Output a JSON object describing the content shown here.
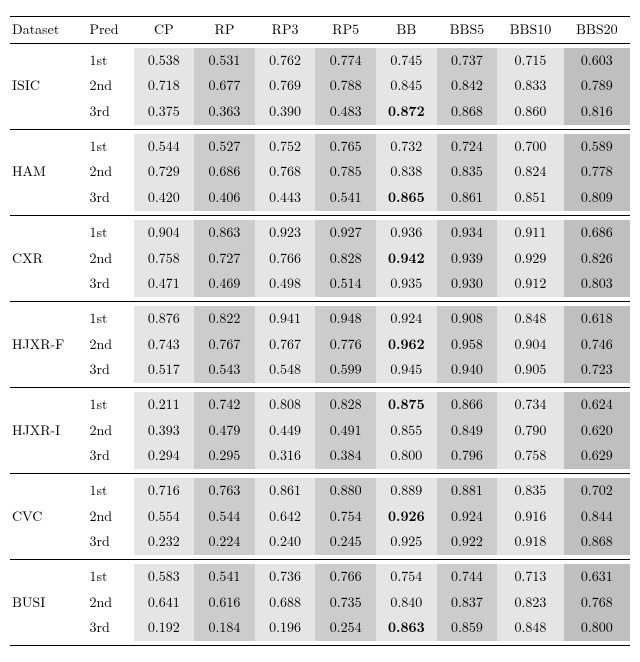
{
  "headers": {
    "dataset": "Dataset",
    "pred": "Pred",
    "cols": [
      "CP",
      "RP",
      "RP3",
      "RP5",
      "BB",
      "BBS5",
      "BBS10",
      "BBS20"
    ]
  },
  "shade": {
    "none": "#ffffff",
    "light": "#e5e5e5",
    "mid": "#cccccc",
    "dark": "#bfbfbf"
  },
  "groups": [
    {
      "dataset": "ISIC",
      "rows": [
        {
          "pred": "1st",
          "vals": [
            "0.538",
            "0.531",
            "0.762",
            "0.774",
            "0.745",
            "0.737",
            "0.715",
            "0.603"
          ],
          "shades": [
            "light",
            "mid",
            "light",
            "mid",
            "light",
            "mid",
            "light",
            "dark"
          ],
          "boldIndex": -1
        },
        {
          "pred": "2nd",
          "vals": [
            "0.718",
            "0.677",
            "0.769",
            "0.788",
            "0.845",
            "0.842",
            "0.833",
            "0.789"
          ],
          "shades": [
            "light",
            "mid",
            "light",
            "mid",
            "light",
            "mid",
            "light",
            "dark"
          ],
          "boldIndex": -1
        },
        {
          "pred": "3rd",
          "vals": [
            "0.375",
            "0.363",
            "0.390",
            "0.483",
            "0.872",
            "0.868",
            "0.860",
            "0.816"
          ],
          "shades": [
            "light",
            "mid",
            "light",
            "mid",
            "light",
            "mid",
            "light",
            "dark"
          ],
          "boldIndex": 4
        }
      ]
    },
    {
      "dataset": "HAM",
      "rows": [
        {
          "pred": "1st",
          "vals": [
            "0.544",
            "0.527",
            "0.752",
            "0.765",
            "0.732",
            "0.724",
            "0.700",
            "0.589"
          ],
          "shades": [
            "light",
            "mid",
            "light",
            "mid",
            "light",
            "mid",
            "light",
            "dark"
          ],
          "boldIndex": -1
        },
        {
          "pred": "2nd",
          "vals": [
            "0.729",
            "0.686",
            "0.768",
            "0.785",
            "0.838",
            "0.835",
            "0.824",
            "0.778"
          ],
          "shades": [
            "light",
            "mid",
            "light",
            "mid",
            "light",
            "mid",
            "light",
            "dark"
          ],
          "boldIndex": -1
        },
        {
          "pred": "3rd",
          "vals": [
            "0.420",
            "0.406",
            "0.443",
            "0.541",
            "0.865",
            "0.861",
            "0.851",
            "0.809"
          ],
          "shades": [
            "light",
            "mid",
            "light",
            "mid",
            "light",
            "mid",
            "light",
            "dark"
          ],
          "boldIndex": 4
        }
      ]
    },
    {
      "dataset": "CXR",
      "rows": [
        {
          "pred": "1st",
          "vals": [
            "0.904",
            "0.863",
            "0.923",
            "0.927",
            "0.936",
            "0.934",
            "0.911",
            "0.686"
          ],
          "shades": [
            "light",
            "mid",
            "light",
            "mid",
            "light",
            "mid",
            "light",
            "dark"
          ],
          "boldIndex": -1
        },
        {
          "pred": "2nd",
          "vals": [
            "0.758",
            "0.727",
            "0.766",
            "0.828",
            "0.942",
            "0.939",
            "0.929",
            "0.826"
          ],
          "shades": [
            "light",
            "mid",
            "light",
            "mid",
            "light",
            "mid",
            "light",
            "dark"
          ],
          "boldIndex": 4
        },
        {
          "pred": "3rd",
          "vals": [
            "0.471",
            "0.469",
            "0.498",
            "0.514",
            "0.935",
            "0.930",
            "0.912",
            "0.803"
          ],
          "shades": [
            "light",
            "mid",
            "light",
            "mid",
            "light",
            "mid",
            "light",
            "dark"
          ],
          "boldIndex": -1
        }
      ]
    },
    {
      "dataset": "HJXR-F",
      "rows": [
        {
          "pred": "1st",
          "vals": [
            "0.876",
            "0.822",
            "0.941",
            "0.948",
            "0.924",
            "0.908",
            "0.848",
            "0.618"
          ],
          "shades": [
            "light",
            "mid",
            "light",
            "mid",
            "light",
            "mid",
            "light",
            "dark"
          ],
          "boldIndex": -1
        },
        {
          "pred": "2nd",
          "vals": [
            "0.743",
            "0.767",
            "0.767",
            "0.776",
            "0.962",
            "0.958",
            "0.904",
            "0.746"
          ],
          "shades": [
            "light",
            "mid",
            "light",
            "mid",
            "light",
            "mid",
            "light",
            "dark"
          ],
          "boldIndex": 4
        },
        {
          "pred": "3rd",
          "vals": [
            "0.517",
            "0.543",
            "0.548",
            "0.599",
            "0.945",
            "0.940",
            "0.905",
            "0.723"
          ],
          "shades": [
            "light",
            "mid",
            "light",
            "mid",
            "light",
            "mid",
            "light",
            "dark"
          ],
          "boldIndex": -1
        }
      ]
    },
    {
      "dataset": "HJXR-I",
      "rows": [
        {
          "pred": "1st",
          "vals": [
            "0.211",
            "0.742",
            "0.808",
            "0.828",
            "0.875",
            "0.866",
            "0.734",
            "0.624"
          ],
          "shades": [
            "light",
            "mid",
            "light",
            "mid",
            "light",
            "mid",
            "light",
            "dark"
          ],
          "boldIndex": 4
        },
        {
          "pred": "2nd",
          "vals": [
            "0.393",
            "0.479",
            "0.449",
            "0.491",
            "0.855",
            "0.849",
            "0.790",
            "0.620"
          ],
          "shades": [
            "light",
            "mid",
            "light",
            "mid",
            "light",
            "mid",
            "light",
            "dark"
          ],
          "boldIndex": -1
        },
        {
          "pred": "3rd",
          "vals": [
            "0.294",
            "0.295",
            "0.316",
            "0.384",
            "0.800",
            "0.796",
            "0.758",
            "0.629"
          ],
          "shades": [
            "light",
            "mid",
            "light",
            "mid",
            "light",
            "mid",
            "light",
            "dark"
          ],
          "boldIndex": -1
        }
      ]
    },
    {
      "dataset": "CVC",
      "rows": [
        {
          "pred": "1st",
          "vals": [
            "0.716",
            "0.763",
            "0.861",
            "0.880",
            "0.889",
            "0.881",
            "0.835",
            "0.702"
          ],
          "shades": [
            "light",
            "mid",
            "light",
            "mid",
            "light",
            "mid",
            "light",
            "dark"
          ],
          "boldIndex": -1
        },
        {
          "pred": "2nd",
          "vals": [
            "0.554",
            "0.544",
            "0.642",
            "0.754",
            "0.926",
            "0.924",
            "0.916",
            "0.844"
          ],
          "shades": [
            "light",
            "mid",
            "light",
            "mid",
            "light",
            "mid",
            "light",
            "dark"
          ],
          "boldIndex": 4
        },
        {
          "pred": "3rd",
          "vals": [
            "0.232",
            "0.224",
            "0.240",
            "0.245",
            "0.925",
            "0.922",
            "0.918",
            "0.868"
          ],
          "shades": [
            "light",
            "mid",
            "light",
            "mid",
            "light",
            "mid",
            "light",
            "dark"
          ],
          "boldIndex": -1
        }
      ]
    },
    {
      "dataset": "BUSI",
      "rows": [
        {
          "pred": "1st",
          "vals": [
            "0.583",
            "0.541",
            "0.736",
            "0.766",
            "0.754",
            "0.744",
            "0.713",
            "0.631"
          ],
          "shades": [
            "light",
            "mid",
            "light",
            "mid",
            "light",
            "mid",
            "light",
            "dark"
          ],
          "boldIndex": -1
        },
        {
          "pred": "2nd",
          "vals": [
            "0.641",
            "0.616",
            "0.688",
            "0.735",
            "0.840",
            "0.837",
            "0.823",
            "0.768"
          ],
          "shades": [
            "light",
            "mid",
            "light",
            "mid",
            "light",
            "mid",
            "light",
            "dark"
          ],
          "boldIndex": -1
        },
        {
          "pred": "3rd",
          "vals": [
            "0.192",
            "0.184",
            "0.196",
            "0.254",
            "0.863",
            "0.859",
            "0.848",
            "0.800"
          ],
          "shades": [
            "light",
            "mid",
            "light",
            "mid",
            "light",
            "mid",
            "light",
            "dark"
          ],
          "boldIndex": 4
        }
      ]
    }
  ]
}
